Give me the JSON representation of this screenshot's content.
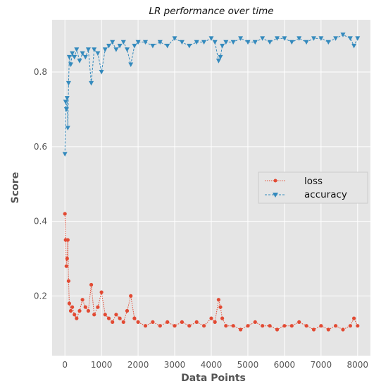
{
  "chart_data": {
    "type": "line",
    "title": "LR performance over time",
    "xlabel": "Data Points",
    "ylabel": "Score",
    "xlim": [
      -350,
      8350
    ],
    "ylim": [
      0.04,
      0.94
    ],
    "xticks": [
      0,
      1000,
      2000,
      3000,
      4000,
      5000,
      6000,
      7000,
      8000
    ],
    "yticks": [
      0.2,
      0.4,
      0.6,
      0.8
    ],
    "ytick_labels": [
      "0.2",
      "0.4",
      "0.6",
      "0.8"
    ],
    "grid": true,
    "legend_position": "center-right",
    "style": "ggplot",
    "series": [
      {
        "name": "loss",
        "color": "#E24A33",
        "marker": "circle",
        "linestyle": "dotted",
        "x": [
          0,
          20,
          40,
          60,
          80,
          100,
          120,
          160,
          200,
          260,
          320,
          400,
          480,
          560,
          640,
          720,
          800,
          900,
          1000,
          1100,
          1200,
          1300,
          1400,
          1500,
          1600,
          1700,
          1800,
          1900,
          2000,
          2200,
          2400,
          2600,
          2800,
          3000,
          3200,
          3400,
          3600,
          3800,
          4000,
          4100,
          4200,
          4250,
          4300,
          4400,
          4600,
          4800,
          5000,
          5200,
          5400,
          5600,
          5800,
          6000,
          6200,
          6400,
          6600,
          6800,
          7000,
          7200,
          7400,
          7600,
          7800,
          7900,
          8000
        ],
        "values": [
          0.42,
          0.35,
          0.28,
          0.3,
          0.35,
          0.24,
          0.18,
          0.16,
          0.17,
          0.15,
          0.14,
          0.16,
          0.19,
          0.17,
          0.16,
          0.23,
          0.15,
          0.17,
          0.21,
          0.15,
          0.14,
          0.13,
          0.15,
          0.14,
          0.13,
          0.16,
          0.2,
          0.14,
          0.13,
          0.12,
          0.13,
          0.12,
          0.13,
          0.12,
          0.13,
          0.12,
          0.13,
          0.12,
          0.14,
          0.13,
          0.19,
          0.17,
          0.14,
          0.12,
          0.12,
          0.11,
          0.12,
          0.13,
          0.12,
          0.12,
          0.11,
          0.12,
          0.12,
          0.13,
          0.12,
          0.11,
          0.12,
          0.11,
          0.12,
          0.11,
          0.12,
          0.14,
          0.12
        ]
      },
      {
        "name": "accuracy",
        "color": "#348ABD",
        "marker": "triangle-down",
        "linestyle": "dashed",
        "x": [
          0,
          20,
          40,
          60,
          80,
          100,
          120,
          160,
          200,
          260,
          320,
          400,
          480,
          560,
          640,
          720,
          800,
          900,
          1000,
          1100,
          1200,
          1300,
          1400,
          1500,
          1600,
          1700,
          1800,
          1900,
          2000,
          2200,
          2400,
          2600,
          2800,
          3000,
          3200,
          3400,
          3600,
          3800,
          4000,
          4100,
          4200,
          4250,
          4300,
          4400,
          4600,
          4800,
          5000,
          5200,
          5400,
          5600,
          5800,
          6000,
          6200,
          6400,
          6600,
          6800,
          7000,
          7200,
          7400,
          7600,
          7800,
          7900,
          8000
        ],
        "values": [
          0.58,
          0.72,
          0.7,
          0.73,
          0.65,
          0.77,
          0.84,
          0.82,
          0.85,
          0.84,
          0.86,
          0.83,
          0.85,
          0.84,
          0.86,
          0.77,
          0.86,
          0.85,
          0.8,
          0.86,
          0.87,
          0.88,
          0.86,
          0.87,
          0.88,
          0.86,
          0.82,
          0.87,
          0.88,
          0.88,
          0.87,
          0.88,
          0.87,
          0.89,
          0.88,
          0.87,
          0.88,
          0.88,
          0.89,
          0.88,
          0.83,
          0.84,
          0.87,
          0.88,
          0.88,
          0.89,
          0.88,
          0.88,
          0.89,
          0.88,
          0.89,
          0.89,
          0.88,
          0.89,
          0.88,
          0.89,
          0.89,
          0.88,
          0.89,
          0.9,
          0.89,
          0.87,
          0.89
        ]
      }
    ]
  }
}
